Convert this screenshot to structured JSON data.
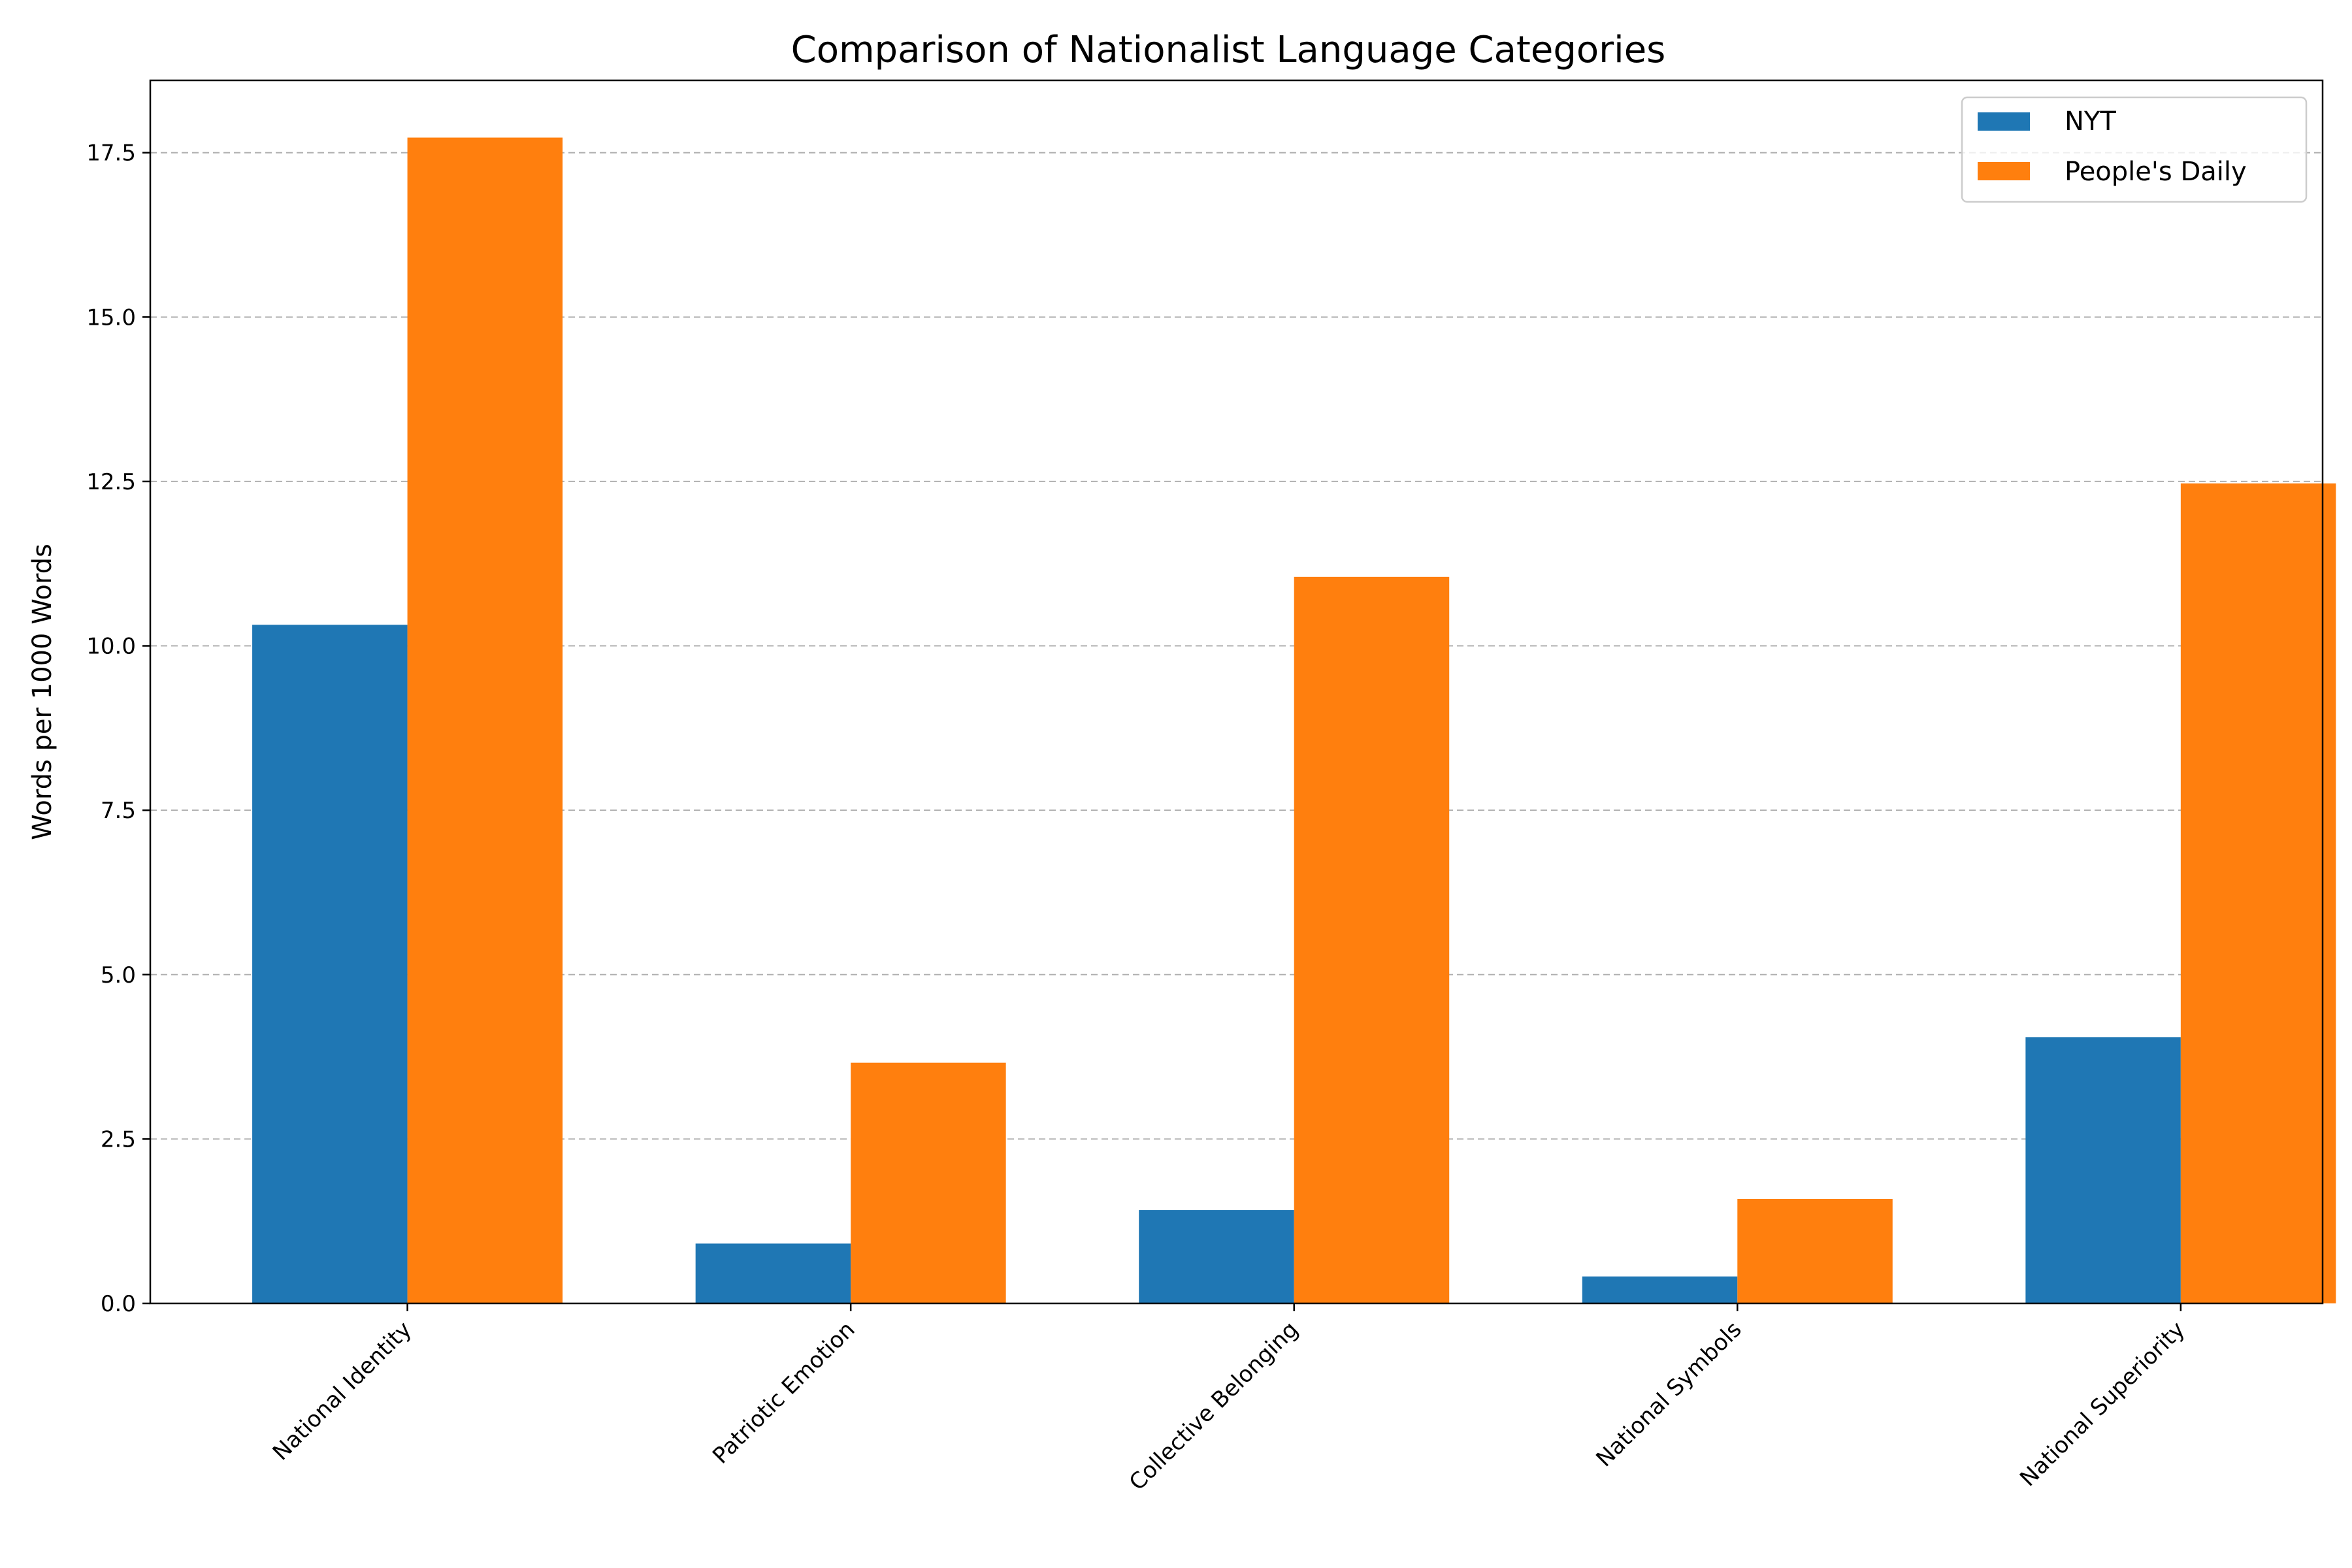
{
  "chart_data": {
    "type": "bar",
    "title": "Comparison of Nationalist Language Categories",
    "xlabel": "",
    "ylabel": "Words per 1000 Words",
    "categories": [
      "National Identity",
      "Patriotic Emotion",
      "Collective Belonging",
      "National Symbols",
      "National Superiority"
    ],
    "series": [
      {
        "name": "NYT",
        "color": "#1f77b4",
        "values": [
          10.32,
          0.91,
          1.42,
          0.41,
          4.05
        ]
      },
      {
        "name": "People's Daily",
        "color": "#ff7f0e",
        "values": [
          17.73,
          3.66,
          11.05,
          1.59,
          12.47
        ]
      }
    ],
    "ylim": [
      0,
      18.6
    ],
    "yticks": [
      "0.0",
      "2.5",
      "5.0",
      "7.5",
      "10.0",
      "12.5",
      "15.0",
      "17.5"
    ],
    "grid": "y-dashed",
    "legend": "top-right"
  }
}
